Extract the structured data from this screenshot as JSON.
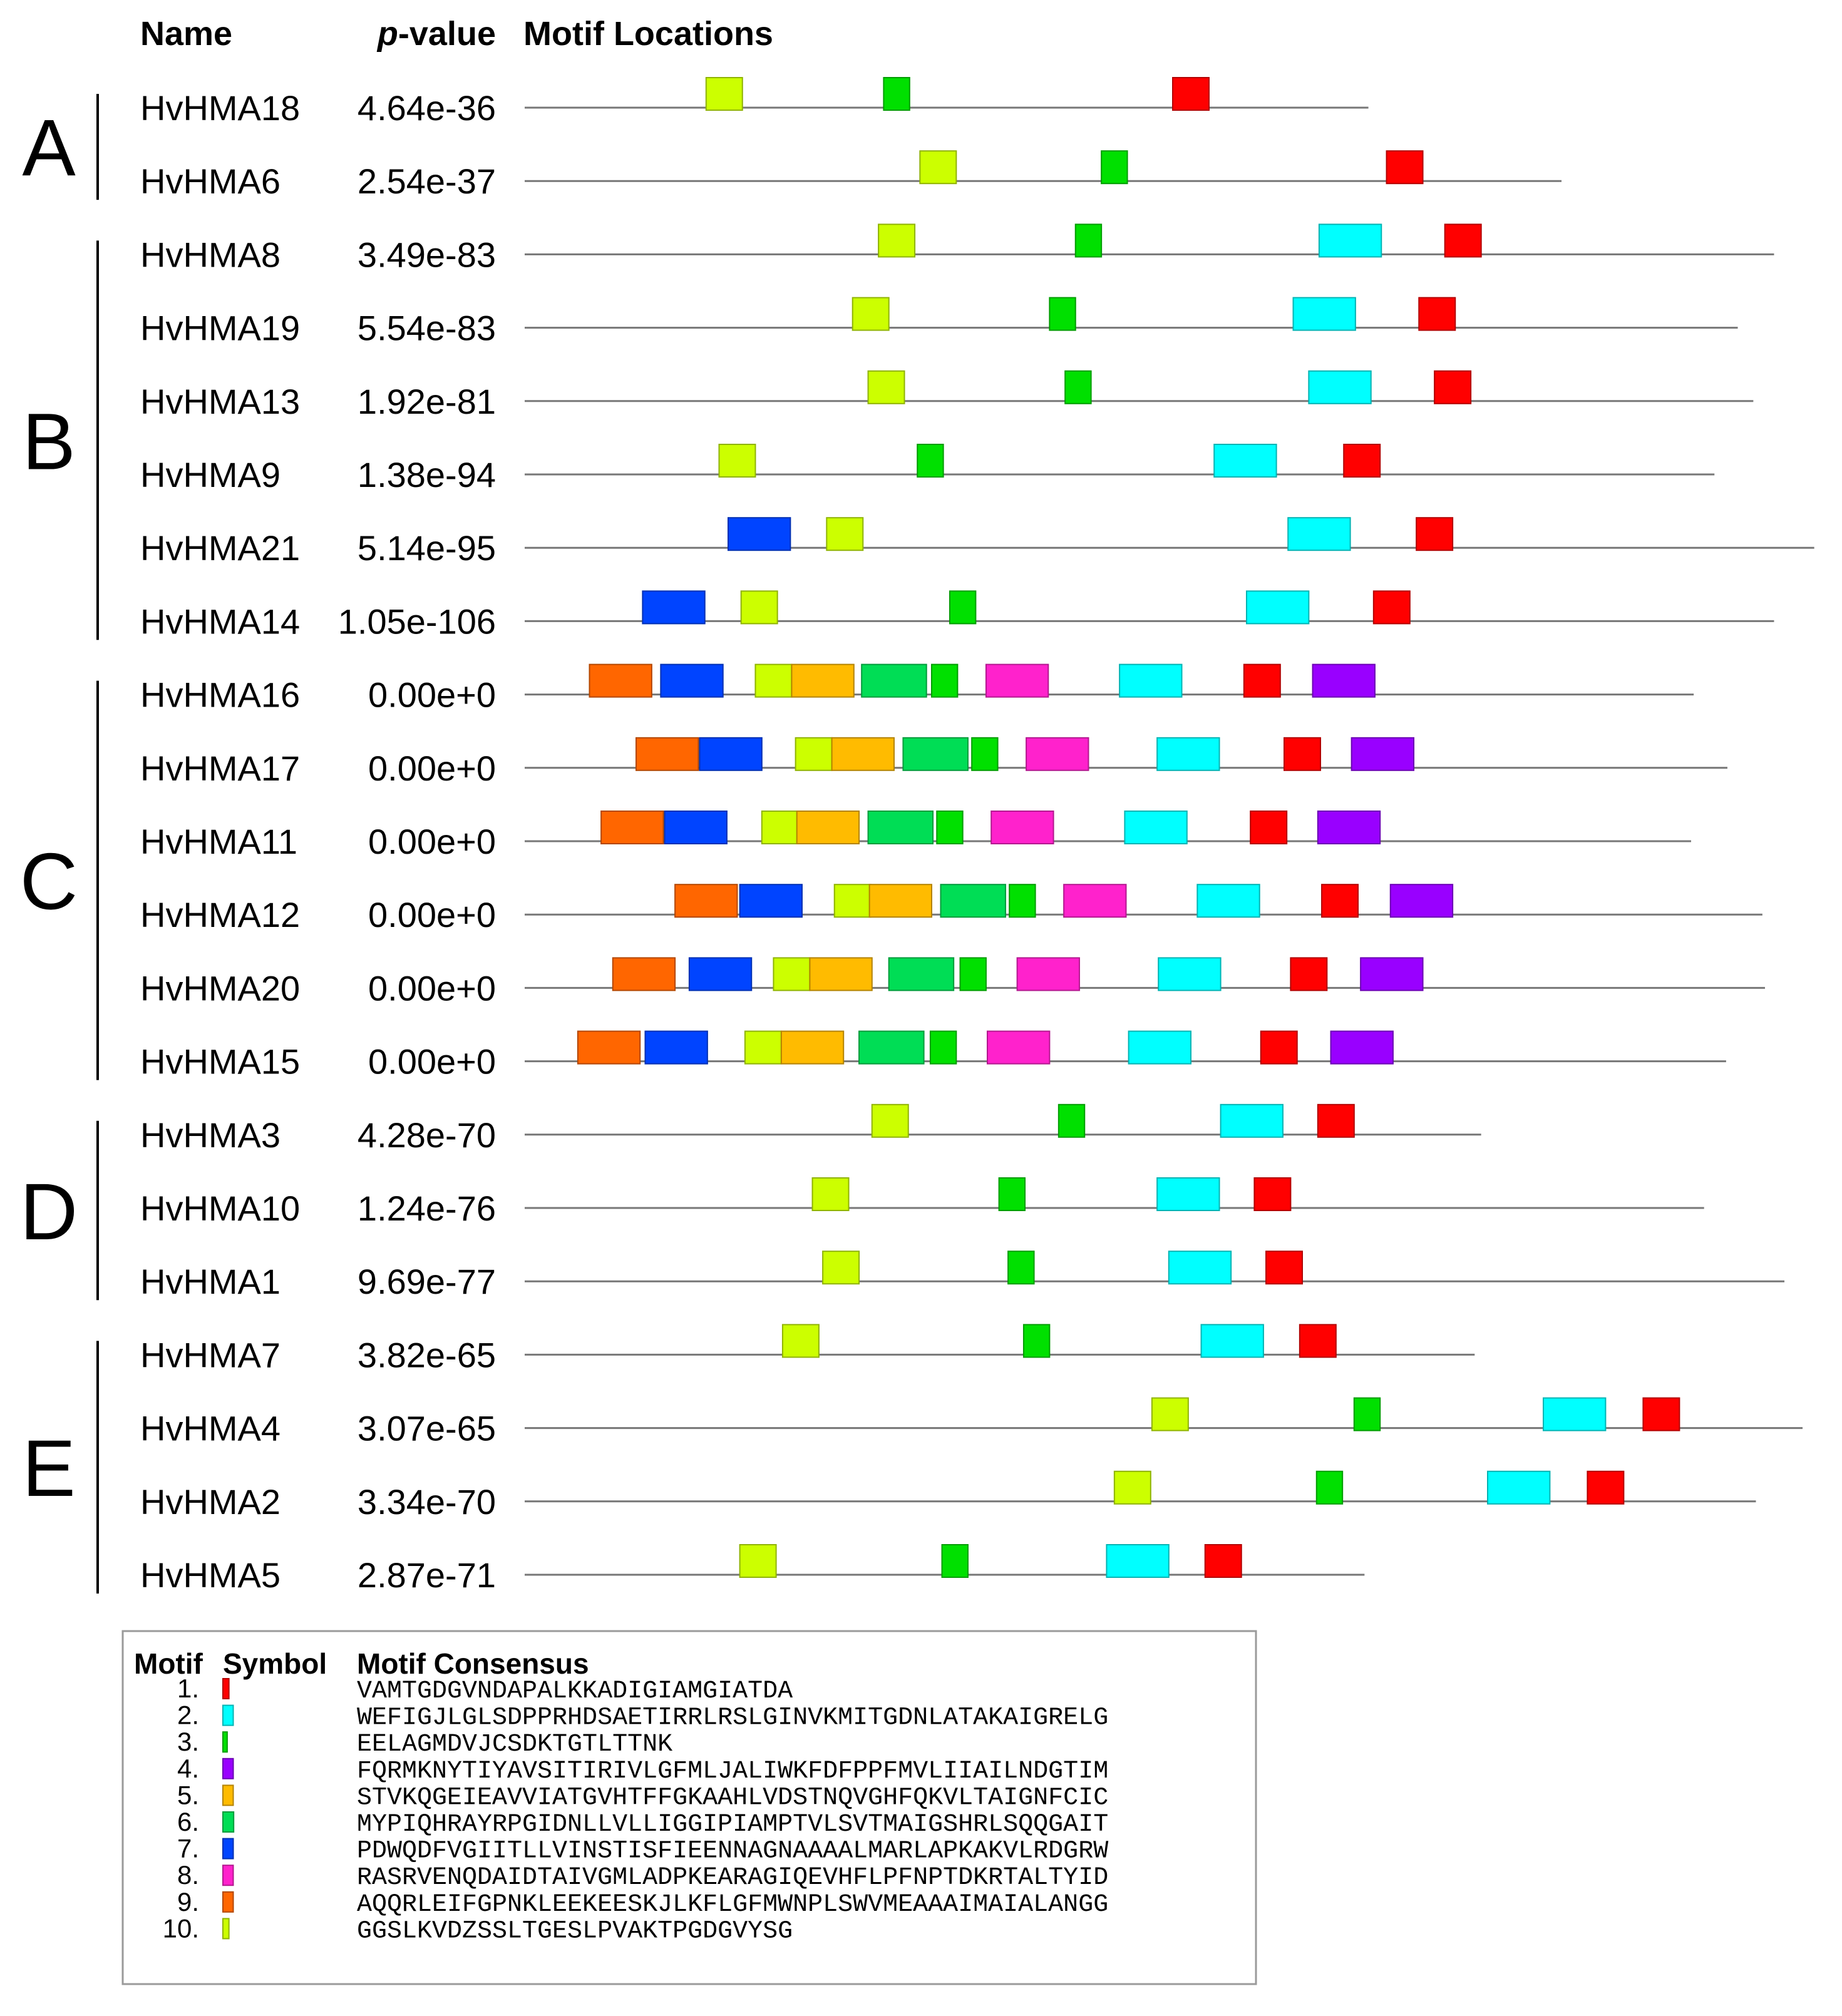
{
  "headers": {
    "name": "Name",
    "pvalue_italic": "p",
    "pvalue_rest": "-value",
    "locations": "Motif Locations"
  },
  "motif_colors": {
    "1": "#ff0000",
    "2": "#00ffff",
    "3": "#00e000",
    "4": "#9900ff",
    "5": "#ffbb00",
    "6": "#00dd55",
    "7": "#0044ff",
    "8": "#ff22cc",
    "9": "#ff6600",
    "10": "#ccff00"
  },
  "groups": [
    {
      "label": "A",
      "rows": [
        0,
        1
      ]
    },
    {
      "label": "B",
      "rows": [
        2,
        7
      ]
    },
    {
      "label": "C",
      "rows": [
        8,
        13
      ]
    },
    {
      "label": "D",
      "rows": [
        14,
        16
      ]
    },
    {
      "label": "E",
      "rows": [
        17,
        20
      ]
    }
  ],
  "sequences": [
    {
      "name": "HvHMA18",
      "pvalue": "4.64e-36",
      "length": 0.651,
      "motifs": [
        [
          10,
          0.14
        ],
        [
          3,
          0.277
        ],
        [
          1,
          0.5
        ]
      ]
    },
    {
      "name": "HvHMA6",
      "pvalue": "2.54e-37",
      "length": 0.8,
      "motifs": [
        [
          10,
          0.305
        ],
        [
          3,
          0.445
        ],
        [
          1,
          0.665
        ]
      ]
    },
    {
      "name": "HvHMA8",
      "pvalue": "3.49e-83",
      "length": 0.964,
      "motifs": [
        [
          10,
          0.273
        ],
        [
          3,
          0.425
        ],
        [
          2,
          0.613
        ],
        [
          1,
          0.71
        ]
      ]
    },
    {
      "name": "HvHMA19",
      "pvalue": "5.54e-83",
      "length": 0.936,
      "motifs": [
        [
          10,
          0.253
        ],
        [
          3,
          0.405
        ],
        [
          2,
          0.593
        ],
        [
          1,
          0.69
        ]
      ]
    },
    {
      "name": "HvHMA13",
      "pvalue": "1.92e-81",
      "length": 0.948,
      "motifs": [
        [
          10,
          0.265
        ],
        [
          3,
          0.417
        ],
        [
          2,
          0.605
        ],
        [
          1,
          0.702
        ]
      ]
    },
    {
      "name": "HvHMA9",
      "pvalue": "1.38e-94",
      "length": 0.918,
      "motifs": [
        [
          10,
          0.15
        ],
        [
          3,
          0.303
        ],
        [
          2,
          0.532
        ],
        [
          1,
          0.632
        ]
      ]
    },
    {
      "name": "HvHMA21",
      "pvalue": "5.14e-95",
      "length": 0.995,
      "motifs": [
        [
          7,
          0.157
        ],
        [
          10,
          0.233
        ],
        [
          2,
          0.589
        ],
        [
          1,
          0.688
        ]
      ]
    },
    {
      "name": "HvHMA14",
      "pvalue": "1.05e-106",
      "length": 0.964,
      "motifs": [
        [
          7,
          0.091
        ],
        [
          10,
          0.167
        ],
        [
          3,
          0.328
        ],
        [
          2,
          0.557
        ],
        [
          1,
          0.655
        ]
      ]
    },
    {
      "name": "HvHMA16",
      "pvalue": "0.00e+0",
      "length": 0.902,
      "motifs": [
        [
          9,
          0.05
        ],
        [
          7,
          0.105
        ],
        [
          10,
          0.178
        ],
        [
          5,
          0.206
        ],
        [
          6,
          0.26
        ],
        [
          3,
          0.314
        ],
        [
          8,
          0.356
        ],
        [
          2,
          0.459
        ],
        [
          1,
          0.555
        ],
        [
          4,
          0.608
        ]
      ]
    },
    {
      "name": "HvHMA17",
      "pvalue": "0.00e+0",
      "length": 0.928,
      "motifs": [
        [
          9,
          0.086
        ],
        [
          7,
          0.135
        ],
        [
          10,
          0.209
        ],
        [
          5,
          0.237
        ],
        [
          6,
          0.292
        ],
        [
          3,
          0.345
        ],
        [
          8,
          0.387
        ],
        [
          2,
          0.488
        ],
        [
          1,
          0.586
        ],
        [
          4,
          0.638
        ]
      ]
    },
    {
      "name": "HvHMA11",
      "pvalue": "0.00e+0",
      "length": 0.9,
      "motifs": [
        [
          9,
          0.059
        ],
        [
          7,
          0.108
        ],
        [
          10,
          0.183
        ],
        [
          5,
          0.21
        ],
        [
          6,
          0.265
        ],
        [
          3,
          0.318
        ],
        [
          8,
          0.36
        ],
        [
          2,
          0.463
        ],
        [
          1,
          0.56
        ],
        [
          4,
          0.612
        ]
      ]
    },
    {
      "name": "HvHMA12",
      "pvalue": "0.00e+0",
      "length": 0.955,
      "motifs": [
        [
          9,
          0.116
        ],
        [
          7,
          0.166
        ],
        [
          10,
          0.239
        ],
        [
          5,
          0.266
        ],
        [
          6,
          0.321
        ],
        [
          3,
          0.374
        ],
        [
          8,
          0.416
        ],
        [
          2,
          0.519
        ],
        [
          1,
          0.615
        ],
        [
          4,
          0.668
        ]
      ]
    },
    {
      "name": "HvHMA20",
      "pvalue": "0.00e+0",
      "length": 0.957,
      "motifs": [
        [
          9,
          0.068
        ],
        [
          7,
          0.127
        ],
        [
          10,
          0.192
        ],
        [
          5,
          0.22
        ],
        [
          6,
          0.281
        ],
        [
          3,
          0.336
        ],
        [
          8,
          0.38
        ],
        [
          2,
          0.489
        ],
        [
          1,
          0.591
        ],
        [
          4,
          0.645
        ]
      ]
    },
    {
      "name": "HvHMA15",
      "pvalue": "0.00e+0",
      "length": 0.927,
      "motifs": [
        [
          9,
          0.041
        ],
        [
          7,
          0.093
        ],
        [
          10,
          0.17
        ],
        [
          5,
          0.198
        ],
        [
          6,
          0.258
        ],
        [
          3,
          0.313
        ],
        [
          8,
          0.357
        ],
        [
          2,
          0.466
        ],
        [
          1,
          0.568
        ],
        [
          4,
          0.622
        ]
      ]
    },
    {
      "name": "HvHMA3",
      "pvalue": "4.28e-70",
      "length": 0.738,
      "motifs": [
        [
          10,
          0.268
        ],
        [
          3,
          0.412
        ],
        [
          2,
          0.537
        ],
        [
          1,
          0.612
        ]
      ]
    },
    {
      "name": "HvHMA10",
      "pvalue": "1.24e-76",
      "length": 0.91,
      "motifs": [
        [
          10,
          0.222
        ],
        [
          3,
          0.366
        ],
        [
          2,
          0.488
        ],
        [
          1,
          0.563
        ]
      ]
    },
    {
      "name": "HvHMA1",
      "pvalue": "9.69e-77",
      "length": 0.972,
      "motifs": [
        [
          10,
          0.23
        ],
        [
          3,
          0.373
        ],
        [
          2,
          0.497
        ],
        [
          1,
          0.572
        ]
      ]
    },
    {
      "name": "HvHMA7",
      "pvalue": "3.82e-65",
      "length": 0.733,
      "motifs": [
        [
          10,
          0.199
        ],
        [
          3,
          0.385
        ],
        [
          2,
          0.522
        ],
        [
          1,
          0.598
        ]
      ]
    },
    {
      "name": "HvHMA4",
      "pvalue": "3.07e-65",
      "length": 0.986,
      "motifs": [
        [
          10,
          0.484
        ],
        [
          3,
          0.64
        ],
        [
          2,
          0.786
        ],
        [
          1,
          0.863
        ]
      ]
    },
    {
      "name": "HvHMA2",
      "pvalue": "3.34e-70",
      "length": 0.95,
      "motifs": [
        [
          10,
          0.455
        ],
        [
          3,
          0.611
        ],
        [
          2,
          0.743
        ],
        [
          1,
          0.82
        ]
      ]
    },
    {
      "name": "HvHMA5",
      "pvalue": "2.87e-71",
      "length": 0.648,
      "motifs": [
        [
          10,
          0.166
        ],
        [
          3,
          0.322
        ],
        [
          2,
          0.449
        ],
        [
          1,
          0.525
        ]
      ]
    }
  ],
  "legend": {
    "headers": {
      "motif": "Motif",
      "symbol": "Symbol",
      "consensus": "Motif Consensus"
    },
    "items": [
      {
        "num": "1.",
        "motif": 1,
        "consensus": "VAMTGDGVNDAPALKKADIGIAMGIATDA"
      },
      {
        "num": "2.",
        "motif": 2,
        "consensus": "WEFIGJLGLSDPPRHDSAETIRRLRSLGINVKMITGDNLATAKAIGRELG"
      },
      {
        "num": "3.",
        "motif": 3,
        "consensus": "EELAGMDVJCSDKTGTLTTNK"
      },
      {
        "num": "4.",
        "motif": 4,
        "consensus": "FQRMKNYTIYAVSITIRIVLGFMLJALIWKFDFPPFMVLIIAILNDGTIM"
      },
      {
        "num": "5.",
        "motif": 5,
        "consensus": "STVKQGEIEAVVIATGVHTFFGKAAHLVDSTNQVGHFQKVLTAIGNFCIC"
      },
      {
        "num": "6.",
        "motif": 6,
        "consensus": "MYPIQHRAYRPGIDNLLVLLIGGIPIAMPTVLSVTMAIGSHRLSQQGAIT"
      },
      {
        "num": "7.",
        "motif": 7,
        "consensus": "PDWQDFVGIITLLVINSTISFIEENNAGNAAAALMARLAPKAKVLRDGRW"
      },
      {
        "num": "8.",
        "motif": 8,
        "consensus": "RASRVENQDAIDTAIVGMLADPKEARAGIQEVHFLPFNPTDKRTALTYID"
      },
      {
        "num": "9.",
        "motif": 9,
        "consensus": "AQQRLEIFGPNKLEEKEESKJLKFLGFMWNPLSWVMEAAAIMAIALANGG"
      },
      {
        "num": "10.",
        "motif": 10,
        "consensus": "GGSLKVDZSSLTGESLPVAKTPGDGVYSG"
      }
    ]
  }
}
